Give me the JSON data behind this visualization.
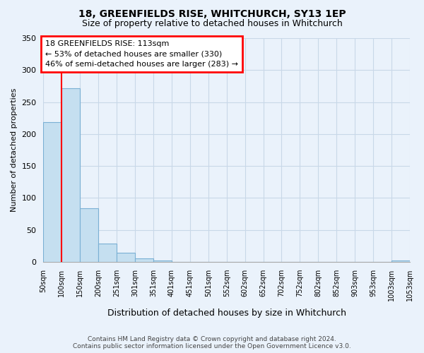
{
  "title": "18, GREENFIELDS RISE, WHITCHURCH, SY13 1EP",
  "subtitle": "Size of property relative to detached houses in Whitchurch",
  "xlabel": "Distribution of detached houses by size in Whitchurch",
  "ylabel": "Number of detached properties",
  "bar_values": [
    218,
    272,
    84,
    29,
    14,
    5,
    2,
    0,
    0,
    0,
    0,
    0,
    0,
    0,
    0,
    0,
    0,
    0,
    0,
    2
  ],
  "bar_labels": [
    "50sqm",
    "100sqm",
    "150sqm",
    "200sqm",
    "251sqm",
    "301sqm",
    "351sqm",
    "401sqm",
    "451sqm",
    "501sqm",
    "552sqm",
    "602sqm",
    "652sqm",
    "702sqm",
    "752sqm",
    "802sqm",
    "852sqm",
    "903sqm",
    "953sqm",
    "1003sqm",
    "1053sqm"
  ],
  "bar_color": "#c5dff0",
  "bar_edge_color": "#7ab0d4",
  "red_line_x": 1,
  "ylim": [
    0,
    350
  ],
  "yticks": [
    0,
    50,
    100,
    150,
    200,
    250,
    300,
    350
  ],
  "annotation_title": "18 GREENFIELDS RISE: 113sqm",
  "annotation_line1": "← 53% of detached houses are smaller (330)",
  "annotation_line2": "46% of semi-detached houses are larger (283) →",
  "footer_line1": "Contains HM Land Registry data © Crown copyright and database right 2024.",
  "footer_line2": "Contains public sector information licensed under the Open Government Licence v3.0.",
  "background_color": "#eaf2fb",
  "grid_color": "#c8d8e8"
}
